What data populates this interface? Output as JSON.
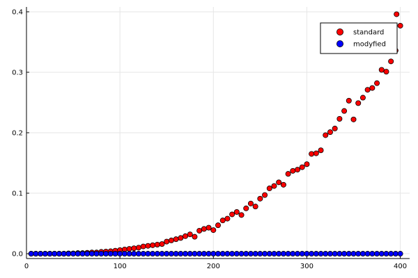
{
  "chart_data": {
    "type": "scatter",
    "title": "",
    "xlabel": "",
    "ylabel": "",
    "xlim": [
      0,
      410
    ],
    "ylim": [
      -0.008,
      0.408
    ],
    "grid": true,
    "legend_position": "top-right",
    "x_ticks": [
      {
        "value": 0,
        "label": "0"
      },
      {
        "value": 100,
        "label": "100"
      },
      {
        "value": 200,
        "label": "200"
      },
      {
        "value": 300,
        "label": "300"
      },
      {
        "value": 400,
        "label": "400"
      }
    ],
    "y_ticks": [
      {
        "value": 0.0,
        "label": "0.0"
      },
      {
        "value": 0.1,
        "label": "0.1"
      },
      {
        "value": 0.2,
        "label": "0.2"
      },
      {
        "value": 0.3,
        "label": "0.3"
      },
      {
        "value": 0.4,
        "label": "0.4"
      }
    ],
    "series": [
      {
        "name": "standard",
        "color": "#ff0000",
        "points": [
          [
            5,
            0.0
          ],
          [
            10,
            0.0
          ],
          [
            15,
            0.0
          ],
          [
            20,
            0.0
          ],
          [
            25,
            0.0
          ],
          [
            30,
            0.0
          ],
          [
            35,
            0.0
          ],
          [
            40,
            0.0
          ],
          [
            45,
            0.0005
          ],
          [
            50,
            0.0005
          ],
          [
            55,
            0.001
          ],
          [
            60,
            0.001
          ],
          [
            65,
            0.0015
          ],
          [
            70,
            0.002
          ],
          [
            75,
            0.002
          ],
          [
            80,
            0.003
          ],
          [
            85,
            0.0035
          ],
          [
            90,
            0.004
          ],
          [
            95,
            0.005
          ],
          [
            100,
            0.006
          ],
          [
            105,
            0.007
          ],
          [
            110,
            0.008
          ],
          [
            115,
            0.009
          ],
          [
            120,
            0.01
          ],
          [
            125,
            0.012
          ],
          [
            130,
            0.013
          ],
          [
            135,
            0.014
          ],
          [
            140,
            0.015
          ],
          [
            145,
            0.016
          ],
          [
            150,
            0.02
          ],
          [
            155,
            0.022
          ],
          [
            160,
            0.024
          ],
          [
            165,
            0.026
          ],
          [
            170,
            0.029
          ],
          [
            175,
            0.032
          ],
          [
            180,
            0.028
          ],
          [
            185,
            0.038
          ],
          [
            190,
            0.041
          ],
          [
            195,
            0.043
          ],
          [
            200,
            0.039
          ],
          [
            205,
            0.047
          ],
          [
            210,
            0.055
          ],
          [
            215,
            0.058
          ],
          [
            220,
            0.065
          ],
          [
            225,
            0.069
          ],
          [
            230,
            0.064
          ],
          [
            235,
            0.075
          ],
          [
            240,
            0.083
          ],
          [
            245,
            0.078
          ],
          [
            250,
            0.091
          ],
          [
            255,
            0.097
          ],
          [
            260,
            0.108
          ],
          [
            265,
            0.112
          ],
          [
            270,
            0.118
          ],
          [
            275,
            0.114
          ],
          [
            280,
            0.132
          ],
          [
            285,
            0.137
          ],
          [
            290,
            0.139
          ],
          [
            295,
            0.143
          ],
          [
            300,
            0.148
          ],
          [
            305,
            0.165
          ],
          [
            310,
            0.166
          ],
          [
            315,
            0.171
          ],
          [
            320,
            0.196
          ],
          [
            325,
            0.201
          ],
          [
            330,
            0.207
          ],
          [
            335,
            0.223
          ],
          [
            340,
            0.236
          ],
          [
            345,
            0.253
          ],
          [
            350,
            0.222
          ],
          [
            355,
            0.249
          ],
          [
            360,
            0.258
          ],
          [
            365,
            0.271
          ],
          [
            370,
            0.274
          ],
          [
            375,
            0.282
          ],
          [
            380,
            0.304
          ],
          [
            385,
            0.301
          ],
          [
            390,
            0.318
          ],
          [
            395,
            0.336
          ],
          [
            400,
            0.377
          ],
          [
            396,
            0.396
          ]
        ]
      },
      {
        "name": "modyfied",
        "color": "#0000ff",
        "points": [
          [
            5,
            0
          ],
          [
            10,
            0
          ],
          [
            15,
            0
          ],
          [
            20,
            0
          ],
          [
            25,
            0
          ],
          [
            30,
            0
          ],
          [
            35,
            0
          ],
          [
            40,
            0
          ],
          [
            45,
            0
          ],
          [
            50,
            0
          ],
          [
            55,
            0
          ],
          [
            60,
            0
          ],
          [
            65,
            0
          ],
          [
            70,
            0
          ],
          [
            75,
            0
          ],
          [
            80,
            0
          ],
          [
            85,
            0
          ],
          [
            90,
            0
          ],
          [
            95,
            0
          ],
          [
            100,
            0
          ],
          [
            105,
            0
          ],
          [
            110,
            0
          ],
          [
            115,
            0
          ],
          [
            120,
            0
          ],
          [
            125,
            0
          ],
          [
            130,
            0
          ],
          [
            135,
            0
          ],
          [
            140,
            0
          ],
          [
            145,
            0
          ],
          [
            150,
            0
          ],
          [
            155,
            0
          ],
          [
            160,
            0
          ],
          [
            165,
            0
          ],
          [
            170,
            0
          ],
          [
            175,
            0
          ],
          [
            180,
            0
          ],
          [
            185,
            0
          ],
          [
            190,
            0
          ],
          [
            195,
            0
          ],
          [
            200,
            0
          ],
          [
            205,
            0
          ],
          [
            210,
            0
          ],
          [
            215,
            0
          ],
          [
            220,
            0
          ],
          [
            225,
            0
          ],
          [
            230,
            0
          ],
          [
            235,
            0
          ],
          [
            240,
            0
          ],
          [
            245,
            0
          ],
          [
            250,
            0
          ],
          [
            255,
            0
          ],
          [
            260,
            0
          ],
          [
            265,
            0
          ],
          [
            270,
            0
          ],
          [
            275,
            0
          ],
          [
            280,
            0
          ],
          [
            285,
            0
          ],
          [
            290,
            0
          ],
          [
            295,
            0
          ],
          [
            300,
            0
          ],
          [
            305,
            0
          ],
          [
            310,
            0
          ],
          [
            315,
            0
          ],
          [
            320,
            0
          ],
          [
            325,
            0
          ],
          [
            330,
            0
          ],
          [
            335,
            0
          ],
          [
            340,
            0
          ],
          [
            345,
            0
          ],
          [
            350,
            0
          ],
          [
            355,
            0
          ],
          [
            360,
            0
          ],
          [
            365,
            0
          ],
          [
            370,
            0
          ],
          [
            375,
            0
          ],
          [
            380,
            0
          ],
          [
            385,
            0
          ],
          [
            390,
            0
          ],
          [
            395,
            0
          ],
          [
            400,
            0
          ]
        ]
      }
    ]
  }
}
